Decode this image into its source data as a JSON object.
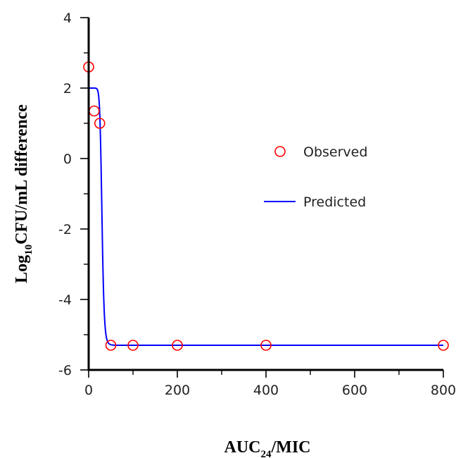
{
  "chart_data": {
    "type": "scatter",
    "title": "",
    "xlabel": {
      "main": "AUC",
      "sub": "24",
      "rest": "/MIC"
    },
    "ylabel": {
      "main": "Log",
      "sub": "10",
      "rest": "CFU/mL difference"
    },
    "xlim": [
      0,
      800
    ],
    "ylim": [
      -6,
      4
    ],
    "x_ticks": [
      "0",
      "200",
      "400",
      "600",
      "800"
    ],
    "x_tick_values": [
      0,
      200,
      400,
      600,
      800
    ],
    "x_minor_tick_values": [
      100,
      300,
      500,
      700
    ],
    "y_ticks": [
      "-6",
      "-4",
      "-2",
      "0",
      "2",
      "4"
    ],
    "y_tick_values": [
      -6,
      -4,
      -2,
      0,
      2,
      4
    ],
    "y_minor_tick_values": [
      -5,
      -3,
      -1,
      1,
      3
    ],
    "grid": false,
    "legend_position": "right",
    "series": [
      {
        "name": "Observed",
        "kind": "markers",
        "color": "#ff0000",
        "x": [
          0,
          12.5,
          25,
          50,
          100,
          200,
          400,
          800
        ],
        "y": [
          2.6,
          1.35,
          1.0,
          -5.3,
          -5.3,
          -5.3,
          -5.3,
          -5.3
        ]
      },
      {
        "name": "Predicted",
        "kind": "line",
        "color": "#0000ff",
        "model": {
          "top": 2.0,
          "bottom": -5.3,
          "ec50": 30,
          "hill": 12
        }
      }
    ]
  }
}
